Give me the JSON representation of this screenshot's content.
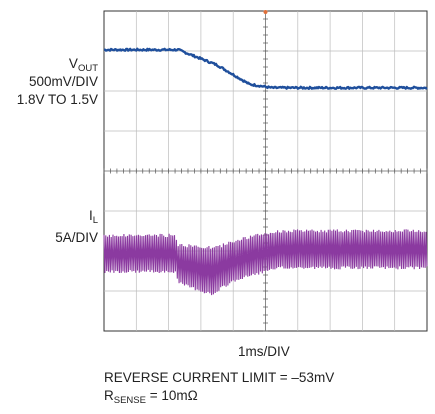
{
  "chart_data": {
    "type": "line",
    "title": "",
    "xlabel": "1ms/DIV",
    "grid": true,
    "divisions": {
      "x": 10,
      "y": 8
    },
    "trigger_marker_color": "#e0703a",
    "series": [
      {
        "name_main": "V",
        "name_sub": "OUT",
        "scale": "500mV/DIV",
        "range_note": "1.8V TO 1.5V",
        "color": "#1f4f9c",
        "x_div": [
          0,
          1.0,
          2.3,
          3.5,
          4.5,
          5.2,
          10
        ],
        "y_div": [
          7.03,
          7.03,
          7.03,
          6.65,
          6.17,
          6.08,
          6.08
        ]
      },
      {
        "name_main": "I",
        "name_sub": "L",
        "scale": "5A/DIV",
        "color": "#8b3aa0",
        "envelope": [
          {
            "x_div": 0,
            "top": 2.39,
            "bottom": 1.49
          },
          {
            "x_div": 2.2,
            "top": 2.39,
            "bottom": 1.49
          },
          {
            "x_div": 2.3,
            "top": 2.15,
            "bottom": 1.2
          },
          {
            "x_div": 3.4,
            "top": 2.08,
            "bottom": 0.9
          },
          {
            "x_div": 3.6,
            "top": 2.12,
            "bottom": 1.05
          },
          {
            "x_div": 4.0,
            "top": 2.25,
            "bottom": 1.25
          },
          {
            "x_div": 4.8,
            "top": 2.4,
            "bottom": 1.45
          },
          {
            "x_div": 5.5,
            "top": 2.5,
            "bottom": 1.58
          },
          {
            "x_div": 10,
            "top": 2.51,
            "bottom": 1.58
          }
        ]
      }
    ]
  },
  "notes": {
    "line1": "REVERSE CURRENT LIMIT = –53mV",
    "line2_prefix": "R",
    "line2_sub": "SENSE",
    "line2_suffix": " = 10mΩ"
  }
}
